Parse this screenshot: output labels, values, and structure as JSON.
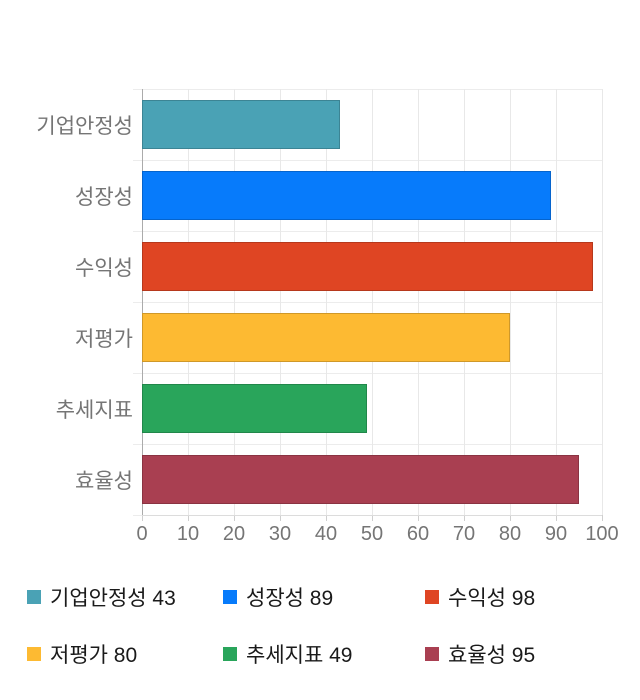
{
  "chart_data": {
    "type": "bar",
    "orientation": "horizontal",
    "title": "",
    "xlabel": "",
    "ylabel": "",
    "categories": [
      "기업안정성",
      "성장성",
      "수익성",
      "저평가",
      "추세지표",
      "효율성"
    ],
    "values": [
      43,
      89,
      98,
      80,
      49,
      95
    ],
    "colors": [
      "#4AA2B5",
      "#077BFB",
      "#DF4523",
      "#FDBA32",
      "#29A55B",
      "#A93F51"
    ],
    "xlim": [
      0,
      100
    ],
    "x_ticks": [
      0,
      10,
      20,
      30,
      40,
      50,
      60,
      70,
      80,
      90,
      100
    ],
    "grid": true,
    "legend_position": "bottom",
    "legend_items": [
      {
        "label": "기업안정성 43",
        "color": "#4AA2B5"
      },
      {
        "label": "성장성 89",
        "color": "#077BFB"
      },
      {
        "label": "수익성 98",
        "color": "#DF4523"
      },
      {
        "label": "저평가 80",
        "color": "#FDBA32"
      },
      {
        "label": "추세지표 49",
        "color": "#29A55B"
      },
      {
        "label": "효율성 95",
        "color": "#A93F51"
      }
    ]
  },
  "style": {
    "background_color": "#FFFFFF",
    "axis_text_color": "#757575",
    "legend_text_color": "#1A1A1A",
    "gridline_color": "#E8E8E8",
    "row_line_color": "#ECECEC",
    "axis_line_color": "#ABABAB",
    "baseline_color": "#DCDCDC",
    "tick_mark_color": "#CFCFCF",
    "bar_border_color": "rgba(0,0,0,0.18)"
  }
}
